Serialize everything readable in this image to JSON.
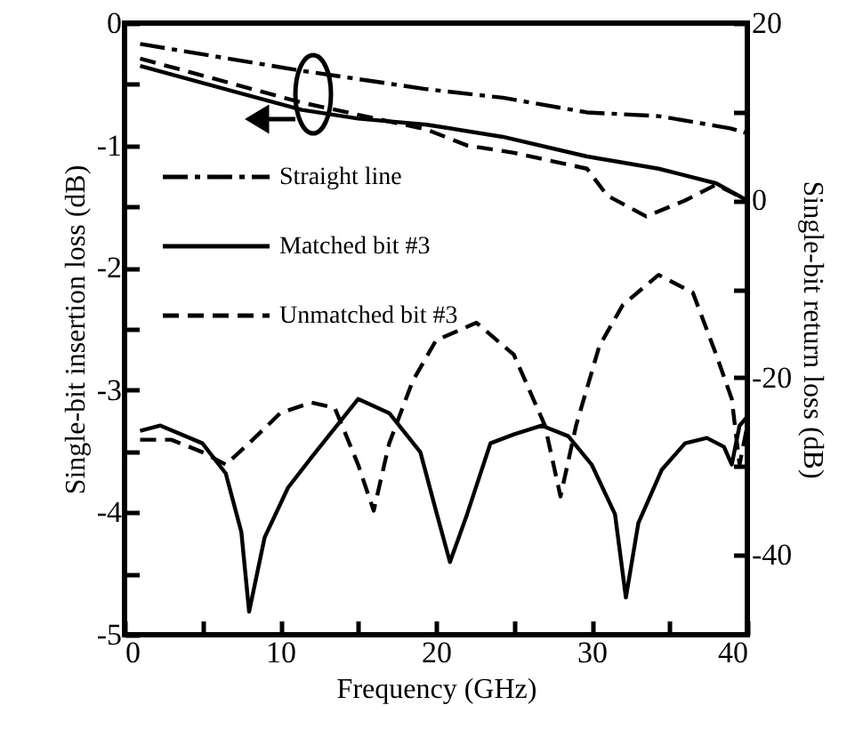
{
  "chart_data": {
    "type": "line",
    "xlabel": "Frequency (GHz)",
    "ylabel": "Single-bit insertion loss (dB)",
    "y2label": "Single-bit return loss (dB)",
    "xlim": [
      0,
      40
    ],
    "xticks": [
      0,
      {
        "value": 5,
        "label": null
      },
      10,
      {
        "value": 15,
        "label": null
      },
      20,
      {
        "value": 25,
        "label": null
      },
      30,
      {
        "value": 35,
        "label": null
      },
      40
    ],
    "ylim": [
      -5,
      0
    ],
    "yticks": [
      -5,
      {
        "value": -4.5,
        "label": null
      },
      -4,
      {
        "value": -3.5,
        "label": null
      },
      -3,
      {
        "value": -2.5,
        "label": null
      },
      -2,
      {
        "value": -1.5,
        "label": null
      },
      -1,
      {
        "value": -0.5,
        "label": null
      },
      0
    ],
    "y2lim": [
      -49,
      20
    ],
    "y2ticks": [
      -40,
      {
        "value": -30,
        "label": null
      },
      -20,
      {
        "value": -10,
        "label": null
      },
      0,
      {
        "value": 10,
        "label": null
      },
      20
    ],
    "legend": "left",
    "grid": false,
    "series": [
      {
        "name": "Straight line",
        "color": "#000000",
        "line_style": "dashdot",
        "axis": "y",
        "x": [
          1,
          11.4,
          19.4,
          24.3,
          29.7,
          34.3,
          38.9,
          40
        ],
        "values": [
          -0.17,
          -0.39,
          -0.54,
          -0.61,
          -0.73,
          -0.76,
          -0.86,
          -0.9
        ]
      },
      {
        "name": "Matched bit #3",
        "color": "#000000",
        "line_style": "solid",
        "axis": "y",
        "x": [
          1,
          11.4,
          15,
          19.4,
          24.3,
          29.7,
          34.3,
          38,
          40
        ],
        "values": [
          -0.35,
          -0.71,
          -0.78,
          -0.83,
          -0.93,
          -1.09,
          -1.19,
          -1.31,
          -1.45
        ]
      },
      {
        "name": "Unmatched bit #3",
        "color": "#000000",
        "line_style": "dashed",
        "axis": "y",
        "x": [
          1,
          11.4,
          19.4,
          22,
          25,
          29.7,
          31,
          33.5,
          36,
          38,
          40
        ],
        "values": [
          -0.29,
          -0.65,
          -0.87,
          -1.0,
          -1.06,
          -1.19,
          -1.41,
          -1.58,
          -1.45,
          -1.32,
          -1.45
        ]
      },
      {
        "color": "#000000",
        "line_style": "solid",
        "axis": "y2",
        "x": [
          1,
          2.3,
          5,
          6.5,
          7.5,
          8,
          9,
          10.5,
          12,
          15,
          17,
          19,
          20,
          20.9,
          22,
          23.5,
          25,
          26.8,
          28.5,
          30,
          31.5,
          32.2,
          33,
          34.5,
          36,
          37.4,
          38.5,
          39,
          39.5,
          40
        ],
        "values": [
          -26,
          -25.4,
          -27.4,
          -30.8,
          -37.4,
          -46.4,
          -38,
          -32.4,
          -29,
          -22.4,
          -24,
          -28.4,
          -35,
          -40.8,
          -35.4,
          -27.4,
          -26.4,
          -25.4,
          -26.6,
          -29.8,
          -35.4,
          -44.8,
          -36.4,
          -30.4,
          -27.4,
          -26.8,
          -27.8,
          -29.8,
          -25.4,
          -24.4
        ]
      },
      {
        "color": "#000000",
        "line_style": "dashed",
        "axis": "y2",
        "x": [
          1,
          3,
          5,
          6.5,
          8,
          10,
          12,
          13.5,
          15,
          16,
          17,
          18.5,
          20,
          22.6,
          25,
          27,
          28,
          29,
          30.5,
          32,
          34.3,
          36.5,
          38,
          39,
          39.5,
          40
        ],
        "values": [
          -27,
          -27,
          -28.4,
          -29.8,
          -27.4,
          -24,
          -22.8,
          -23.4,
          -29.8,
          -35,
          -27.4,
          -20.4,
          -15.8,
          -13.8,
          -17.4,
          -25.4,
          -33.4,
          -25.4,
          -16.4,
          -11.8,
          -8.4,
          -10.4,
          -17.4,
          -22.4,
          -29.8,
          -25.4
        ]
      }
    ]
  }
}
